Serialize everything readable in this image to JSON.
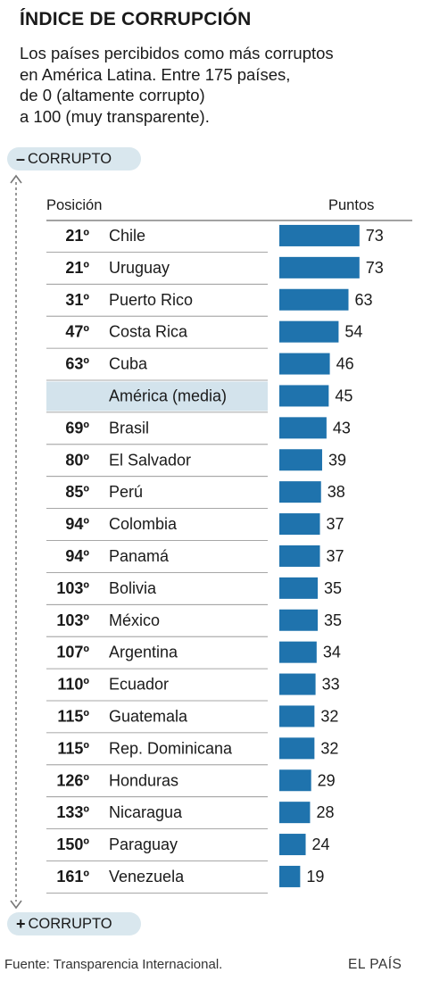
{
  "title": "ÍNDICE DE CORRUPCIÓN",
  "subtitle_lines": [
    "Los países percibidos como más corruptos",
    "en América Latina. Entre 175 países,",
    "de 0 (altamente corrupto)",
    "a 100 (muy transparente)."
  ],
  "scale_top": {
    "symbol": "–",
    "label": "CORRUPTO"
  },
  "scale_bottom": {
    "symbol": "+",
    "label": "CORRUPTO"
  },
  "columns": {
    "position": "Posición",
    "points": "Puntos"
  },
  "chart_data": {
    "type": "bar",
    "orientation": "horizontal",
    "bar_color": "#1f73ad",
    "highlight_color": "#d3e3ec",
    "grid": false,
    "rows": [
      {
        "rank": "21º",
        "country": "Chile",
        "value": 73
      },
      {
        "rank": "21º",
        "country": "Uruguay",
        "value": 73
      },
      {
        "rank": "31º",
        "country": "Puerto Rico",
        "value": 63
      },
      {
        "rank": "47º",
        "country": "Costa Rica",
        "value": 54
      },
      {
        "rank": "63º",
        "country": "Cuba",
        "value": 46
      },
      {
        "rank": "",
        "country": "América (media)",
        "value": 45,
        "highlight": true
      },
      {
        "rank": "69º",
        "country": "Brasil",
        "value": 43
      },
      {
        "rank": "80º",
        "country": "El Salvador",
        "value": 39
      },
      {
        "rank": "85º",
        "country": "Perú",
        "value": 38
      },
      {
        "rank": "94º",
        "country": "Colombia",
        "value": 37
      },
      {
        "rank": "94º",
        "country": "Panamá",
        "value": 37
      },
      {
        "rank": "103º",
        "country": "Bolivia",
        "value": 35
      },
      {
        "rank": "103º",
        "country": "México",
        "value": 35
      },
      {
        "rank": "107º",
        "country": "Argentina",
        "value": 34
      },
      {
        "rank": "110º",
        "country": "Ecuador",
        "value": 33
      },
      {
        "rank": "115º",
        "country": "Guatemala",
        "value": 32
      },
      {
        "rank": "115º",
        "country": "Rep. Dominicana",
        "value": 32
      },
      {
        "rank": "126º",
        "country": "Honduras",
        "value": 29
      },
      {
        "rank": "133º",
        "country": "Nicaragua",
        "value": 28
      },
      {
        "rank": "150º",
        "country": "Paraguay",
        "value": 24
      },
      {
        "rank": "161º",
        "country": "Venezuela",
        "value": 19
      }
    ]
  },
  "footer": {
    "source": "Fuente: Transparencia Internacional.",
    "brand": "EL PAÍS"
  }
}
